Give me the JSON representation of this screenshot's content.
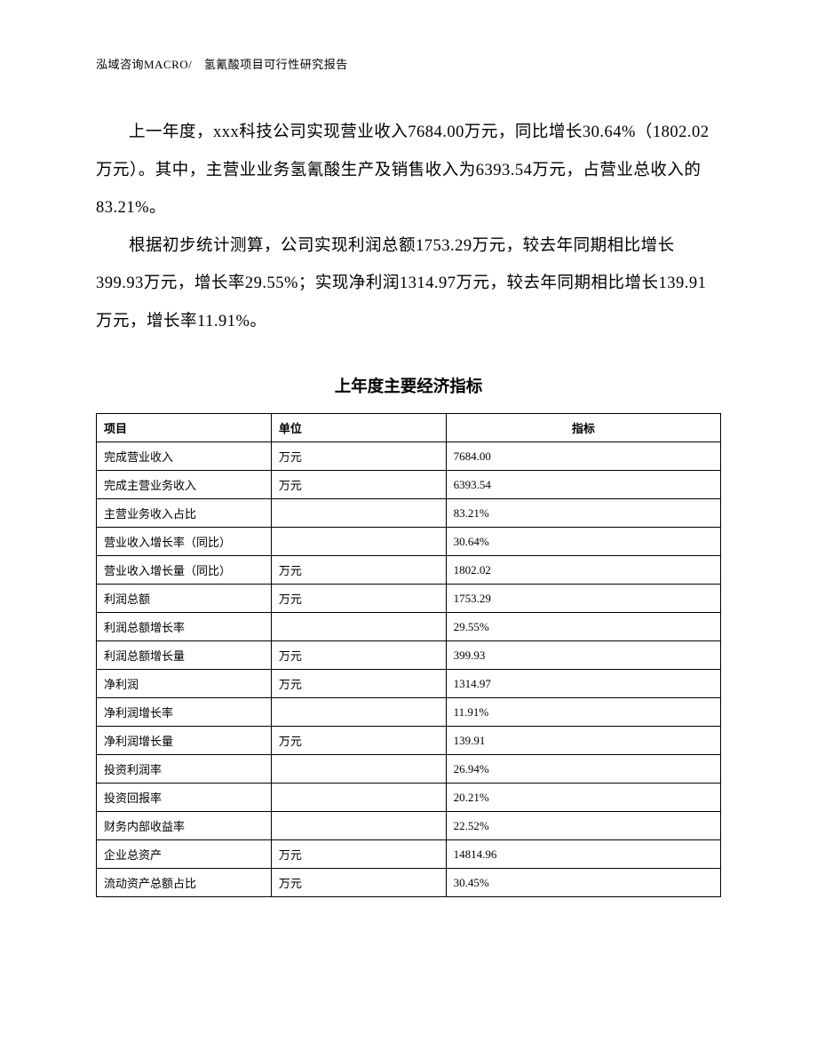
{
  "header": "泓域咨询MACRO/　氢氰酸项目可行性研究报告",
  "paragraphs": {
    "p1": "上一年度，xxx科技公司实现营业收入7684.00万元，同比增长30.64%（1802.02万元）。其中，主营业业务氢氰酸生产及销售收入为6393.54万元，占营业总收入的83.21%。",
    "p2": "根据初步统计测算，公司实现利润总额1753.29万元，较去年同期相比增长399.93万元，增长率29.55%；实现净利润1314.97万元，较去年同期相比增长139.91万元，增长率11.91%。"
  },
  "table": {
    "title": "上年度主要经济指标",
    "columns": {
      "col1": "项目",
      "col2": "单位",
      "col3": "指标"
    },
    "rows": [
      {
        "c1": "完成营业收入",
        "c2": "万元",
        "c3": "7684.00"
      },
      {
        "c1": "完成主营业务收入",
        "c2": "万元",
        "c3": "6393.54"
      },
      {
        "c1": "主营业务收入占比",
        "c2": "",
        "c3": "83.21%"
      },
      {
        "c1": "营业收入增长率（同比）",
        "c2": "",
        "c3": "30.64%"
      },
      {
        "c1": "营业收入增长量（同比）",
        "c2": "万元",
        "c3": "1802.02"
      },
      {
        "c1": "利润总额",
        "c2": "万元",
        "c3": "1753.29"
      },
      {
        "c1": "利润总额增长率",
        "c2": "",
        "c3": "29.55%"
      },
      {
        "c1": "利润总额增长量",
        "c2": "万元",
        "c3": "399.93"
      },
      {
        "c1": "净利润",
        "c2": "万元",
        "c3": "1314.97"
      },
      {
        "c1": "净利润增长率",
        "c2": "",
        "c3": "11.91%"
      },
      {
        "c1": "净利润增长量",
        "c2": "万元",
        "c3": "139.91"
      },
      {
        "c1": "投资利润率",
        "c2": "",
        "c3": "26.94%"
      },
      {
        "c1": "投资回报率",
        "c2": "",
        "c3": "20.21%"
      },
      {
        "c1": "财务内部收益率",
        "c2": "",
        "c3": "22.52%"
      },
      {
        "c1": "企业总资产",
        "c2": "万元",
        "c3": "14814.96"
      },
      {
        "c1": "流动资产总额占比",
        "c2": "万元",
        "c3": "30.45%"
      }
    ]
  }
}
